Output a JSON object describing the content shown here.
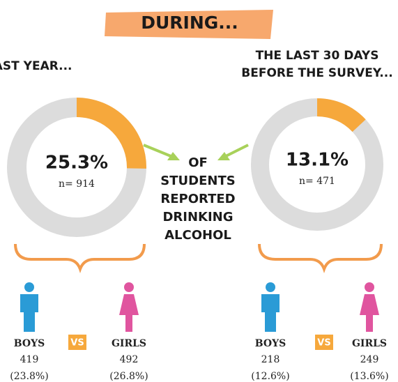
{
  "header": "DURING...",
  "center_text": [
    "OF",
    "STUDENTS",
    "REPORTED",
    "DRINKING",
    "ALCOHOL"
  ],
  "vs_label": "VS",
  "chart_data": [
    {
      "type": "donut",
      "title": [
        "THE PAST YEAR..."
      ],
      "values": [
        25.3
      ],
      "value_labels": [
        "25.3%"
      ],
      "n_label": "n= 914",
      "color": "#f6a83c",
      "track_color": "#dcdcdc",
      "range": [
        0,
        100
      ],
      "breakdown": [
        {
          "name": "BOYS",
          "count": 419,
          "share": "(23.8%)",
          "color": "#2a9bd6"
        },
        {
          "name": "GIRLS",
          "count": 492,
          "share": "(26.8%)",
          "color": "#e0559f"
        }
      ]
    },
    {
      "type": "donut",
      "title": [
        "THE LAST 30 DAYS",
        "BEFORE THE SURVEY..."
      ],
      "values": [
        13.1
      ],
      "value_labels": [
        "13.1%"
      ],
      "n_label": "n= 471",
      "color": "#f6a83c",
      "track_color": "#dcdcdc",
      "range": [
        0,
        100
      ],
      "breakdown": [
        {
          "name": "BOYS",
          "count": 218,
          "share": "(12.6%)",
          "color": "#2a9bd6"
        },
        {
          "name": "GIRLS",
          "count": 249,
          "share": "(13.6%)",
          "color": "#e0559f"
        }
      ]
    }
  ]
}
